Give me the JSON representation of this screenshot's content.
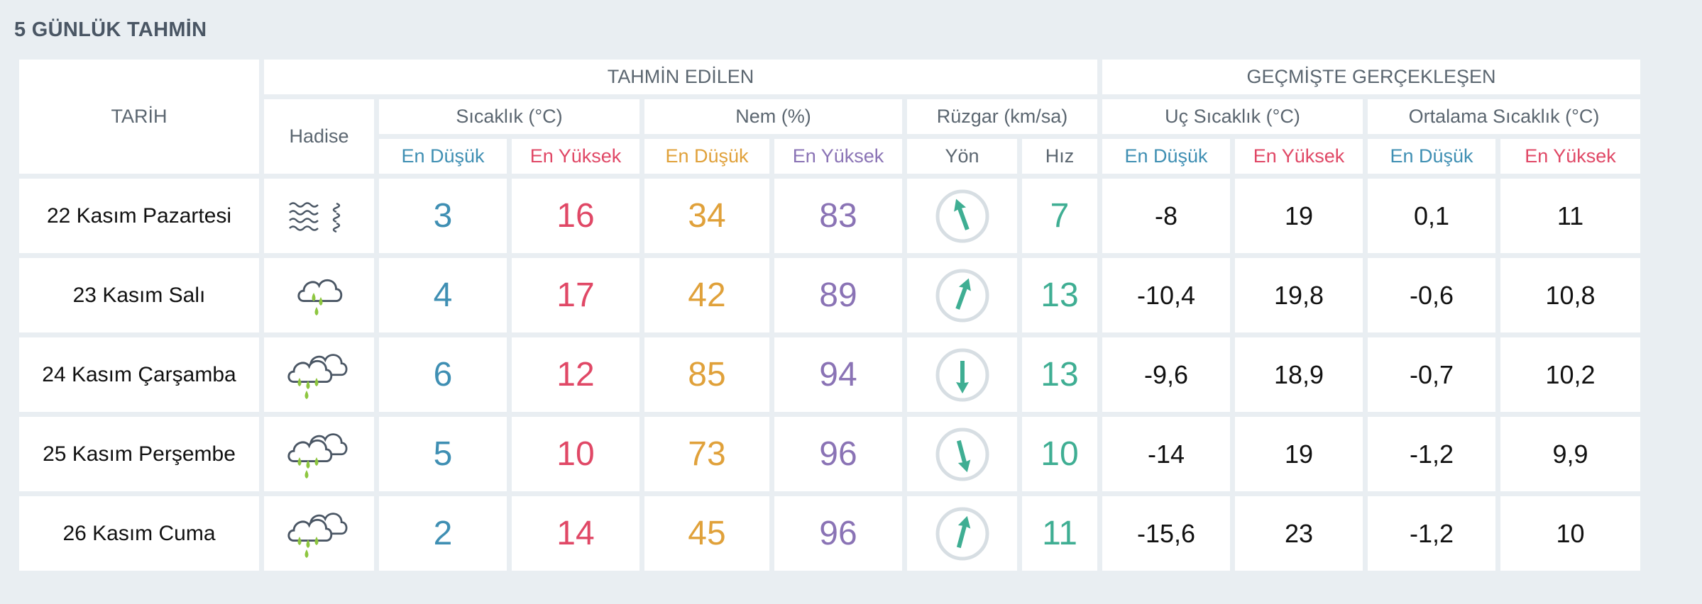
{
  "title": "5 GÜNLÜK TAHMİN",
  "headers": {
    "date": "TARİH",
    "forecast": "TAHMİN EDİLEN",
    "history": "GEÇMİŞTE GERÇEKLEŞEN",
    "event": "Hadise",
    "temperature": "Sıcaklık (°C)",
    "humidity": "Nem (%)",
    "wind": "Rüzgar (km/sa)",
    "extreme_temp": "Uç Sıcaklık (°C)",
    "avg_temp": "Ortalama Sıcaklık (°C)",
    "low": "En Düşük",
    "high": "En Yüksek",
    "direction": "Yön",
    "speed": "Hız"
  },
  "colors": {
    "temp_low": "#3f8fb3",
    "temp_high": "#e04866",
    "hum_low": "#e0a13a",
    "hum_high": "#8a73b5",
    "wind": "#3fae93"
  },
  "days": [
    {
      "date": "22 Kasım Pazartesi",
      "event_icon": "fog-icon",
      "temp_low": "3",
      "temp_high": "16",
      "hum_low": "34",
      "hum_high": "83",
      "wind_dir_deg": 340,
      "wind_speed": "7",
      "ext_low": "-8",
      "ext_high": "19",
      "avg_low": "0,1",
      "avg_high": "11"
    },
    {
      "date": "23 Kasım Salı",
      "event_icon": "light-rain-icon",
      "temp_low": "4",
      "temp_high": "17",
      "hum_low": "42",
      "hum_high": "89",
      "wind_dir_deg": 20,
      "wind_speed": "13",
      "ext_low": "-10,4",
      "ext_high": "19,8",
      "avg_low": "-0,6",
      "avg_high": "10,8"
    },
    {
      "date": "24 Kasım Çarşamba",
      "event_icon": "rain-icon",
      "temp_low": "6",
      "temp_high": "12",
      "hum_low": "85",
      "hum_high": "94",
      "wind_dir_deg": 180,
      "wind_speed": "13",
      "ext_low": "-9,6",
      "ext_high": "18,9",
      "avg_low": "-0,7",
      "avg_high": "10,2"
    },
    {
      "date": "25 Kasım Perşembe",
      "event_icon": "rain-icon",
      "temp_low": "5",
      "temp_high": "10",
      "hum_low": "73",
      "hum_high": "96",
      "wind_dir_deg": 165,
      "wind_speed": "10",
      "ext_low": "-14",
      "ext_high": "19",
      "avg_low": "-1,2",
      "avg_high": "9,9"
    },
    {
      "date": "26 Kasım Cuma",
      "event_icon": "rain-icon",
      "temp_low": "2",
      "temp_high": "14",
      "hum_low": "45",
      "hum_high": "96",
      "wind_dir_deg": 15,
      "wind_speed": "11",
      "ext_low": "-15,6",
      "ext_high": "23",
      "avg_low": "-1,2",
      "avg_high": "10"
    }
  ]
}
